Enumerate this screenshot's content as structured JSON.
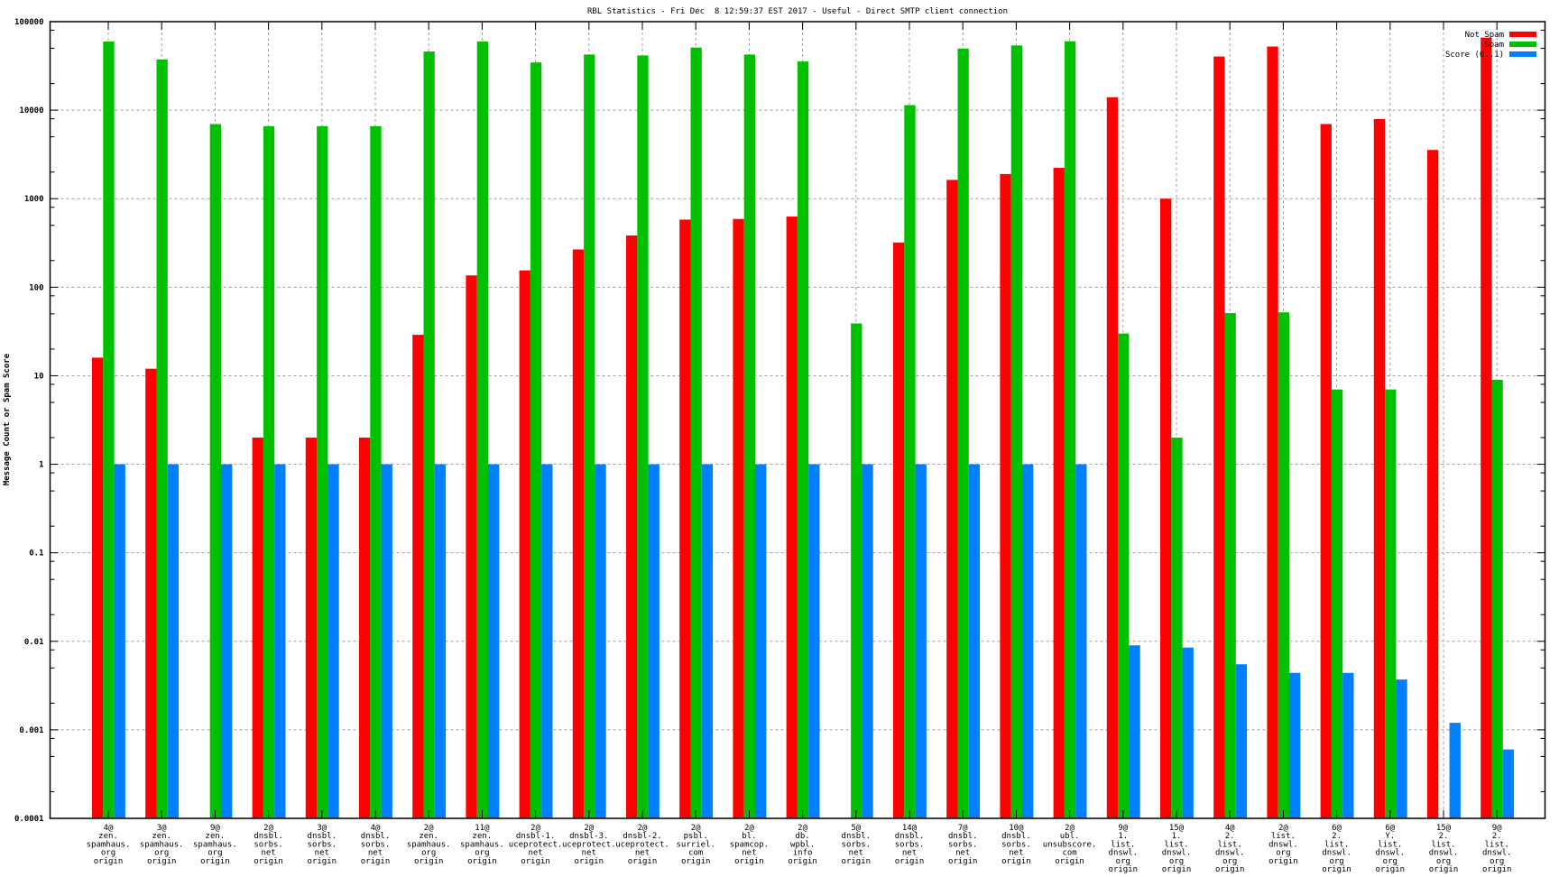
{
  "chart_data": {
    "type": "bar",
    "title": "RBL Statistics - Fri Dec  8 12:59:37 EST 2017 - Useful - Direct SMTP client connection",
    "xlabel": "",
    "ylabel": "Message Count or Spam Score",
    "yscale": "log",
    "ylim": [
      0.0001,
      100000
    ],
    "yticks": [
      "0.0001",
      "0.001",
      "0.01",
      "0.1",
      "1",
      "10",
      "100",
      "1000",
      "10000",
      "100000"
    ],
    "grid": true,
    "legend_position": "top-right",
    "colors": {
      "not_spam": "#ff0000",
      "spam": "#00c000",
      "score": "#0080ff"
    },
    "categories": [
      [
        "4@",
        "zen.",
        "spamhaus.",
        "org",
        "origin"
      ],
      [
        "3@",
        "zen.",
        "spamhaus.",
        "org",
        "origin"
      ],
      [
        "9@",
        "zen.",
        "spamhaus.",
        "org",
        "origin"
      ],
      [
        "2@",
        "dnsbl.",
        "sorbs.",
        "net",
        "origin"
      ],
      [
        "3@",
        "dnsbl.",
        "sorbs.",
        "net",
        "origin"
      ],
      [
        "4@",
        "dnsbl.",
        "sorbs.",
        "net",
        "origin"
      ],
      [
        "2@",
        "zen.",
        "spamhaus.",
        "org",
        "origin"
      ],
      [
        "11@",
        "zen.",
        "spamhaus.",
        "org",
        "origin"
      ],
      [
        "2@",
        "dnsbl-1.",
        "uceprotect.",
        "net",
        "origin"
      ],
      [
        "2@",
        "dnsbl-3.",
        "uceprotect.",
        "net",
        "origin"
      ],
      [
        "2@",
        "dnsbl-2.",
        "uceprotect.",
        "net",
        "origin"
      ],
      [
        "2@",
        "psbl.",
        "surriel.",
        "com",
        "origin"
      ],
      [
        "2@",
        "bl.",
        "spamcop.",
        "net",
        "origin"
      ],
      [
        "2@",
        "db.",
        "wpbl.",
        "info",
        "origin"
      ],
      [
        "5@",
        "dnsbl.",
        "sorbs.",
        "net",
        "origin"
      ],
      [
        "14@",
        "dnsbl.",
        "sorbs.",
        "net",
        "origin"
      ],
      [
        "7@",
        "dnsbl.",
        "sorbs.",
        "net",
        "origin"
      ],
      [
        "10@",
        "dnsbl.",
        "sorbs.",
        "net",
        "origin"
      ],
      [
        "2@",
        "ubl.",
        "unsubscore.",
        "com",
        "origin"
      ],
      [
        "9@",
        "1.",
        "list.",
        "dnswl.",
        "org",
        "origin"
      ],
      [
        "15@",
        "1.",
        "list.",
        "dnswl.",
        "org",
        "origin"
      ],
      [
        "4@",
        "2.",
        "list.",
        "dnswl.",
        "org",
        "origin"
      ],
      [
        "2@",
        "list.",
        "dnswl.",
        "org",
        "origin"
      ],
      [
        "6@",
        "2.",
        "list.",
        "dnswl.",
        "org",
        "origin"
      ],
      [
        "6@",
        "Y.",
        "list.",
        "dnswl.",
        "org",
        "origin"
      ],
      [
        "15@",
        "2.",
        "list.",
        "dnswl.",
        "org",
        "origin"
      ],
      [
        "9@",
        "2.",
        "list.",
        "dnswl.",
        "org",
        "origin"
      ]
    ],
    "series": [
      {
        "name": "Not Spam",
        "key": "not_spam",
        "values": [
          16,
          12,
          null,
          2,
          2,
          2,
          29,
          136,
          155,
          267,
          384,
          580,
          590,
          628,
          null,
          320,
          1630,
          1900,
          2230,
          14000,
          1000,
          40400,
          52400,
          6970,
          7930,
          3550,
          66000
        ]
      },
      {
        "name": "Spam",
        "key": "spam",
        "values": [
          59600,
          37400,
          6970,
          6600,
          6600,
          6600,
          46000,
          59600,
          34600,
          42500,
          41500,
          51000,
          42500,
          35500,
          39,
          11400,
          49700,
          53800,
          60000,
          30,
          2,
          51,
          52,
          7,
          7,
          null,
          9
        ]
      },
      {
        "name": "Score (0..1)",
        "key": "score",
        "values": [
          1,
          1,
          1,
          1,
          1,
          1,
          1,
          1,
          1,
          1,
          1,
          1,
          1,
          1,
          1,
          1,
          1,
          1,
          1,
          0.009,
          0.0085,
          0.0055,
          0.0044,
          0.0044,
          0.0037,
          0.0012,
          0.0006
        ]
      }
    ]
  }
}
